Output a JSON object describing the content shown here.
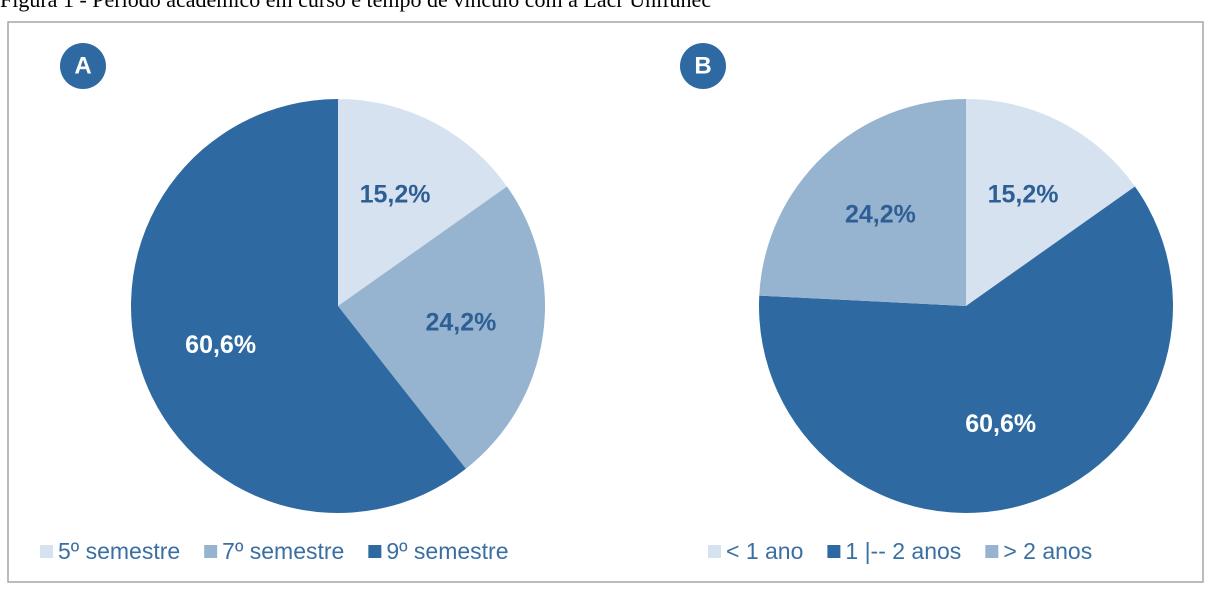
{
  "title": "Figura 1 - Período acadêmico em curso e tempo de vínculo com a Lacr Unifunec",
  "chart_data": [
    {
      "type": "pie",
      "label": "A",
      "categories": [
        "5º semestre",
        "7º semestre",
        "9º semestre"
      ],
      "values": [
        15.2,
        24.2,
        60.6
      ],
      "value_labels": [
        "15,2%",
        "24,2%",
        "60,6%"
      ],
      "colors": [
        "#d6e2ef",
        "#96b3d0",
        "#2e6aa1"
      ]
    },
    {
      "type": "pie",
      "label": "B",
      "categories": [
        "< 1 ano",
        "1 |-- 2 anos",
        "> 2 anos"
      ],
      "values": [
        15.2,
        60.6,
        24.2
      ],
      "value_labels": [
        "15,2%",
        "60,6%",
        "24,2%"
      ],
      "colors": [
        "#d6e2ef",
        "#2e6aa1",
        "#96b3d0"
      ]
    }
  ]
}
